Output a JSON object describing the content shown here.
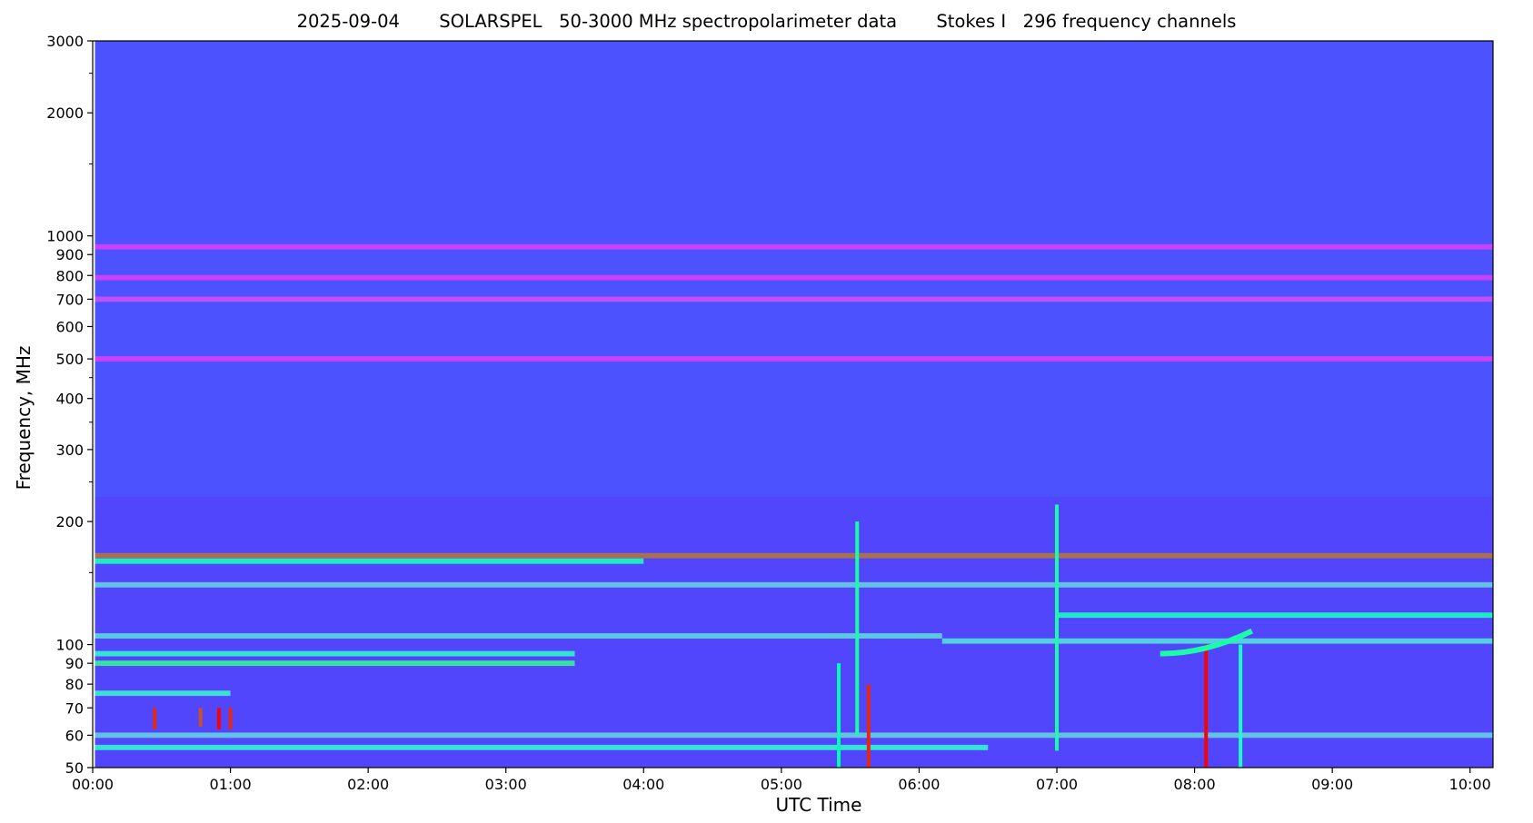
{
  "chart_data": {
    "type": "heatmap",
    "title": "2025-09-04       SOLARSPEL   50-3000 MHz spectropolarimeter data       Stokes I   296 frequency channels",
    "xlabel": "UTC Time",
    "ylabel": "Frequency, MHz",
    "x_range": [
      "00:00",
      "10:10"
    ],
    "x_ticks": [
      "00:00",
      "01:00",
      "02:00",
      "03:00",
      "04:00",
      "05:00",
      "06:00",
      "07:00",
      "08:00",
      "09:00",
      "10:00"
    ],
    "y_scale": "log",
    "ylim": [
      50,
      3000
    ],
    "y_ticks": [
      50,
      60,
      70,
      80,
      90,
      100,
      200,
      300,
      400,
      500,
      600,
      700,
      800,
      900,
      1000,
      2000,
      3000
    ],
    "y_minor_ticks": [
      150,
      250,
      350,
      450,
      1500,
      2500
    ],
    "colormap": "rainbow",
    "colors": {
      "background_level": "#4b52fe",
      "strong_level": "#ff0000"
    },
    "data_start": "00:01",
    "grid": false,
    "features": [
      {
        "type": "band",
        "freq_mhz": 940,
        "start": "00:01",
        "end": "10:10",
        "level": 0.08
      },
      {
        "type": "band",
        "freq_mhz": 790,
        "start": "00:01",
        "end": "10:10",
        "level": 0.08
      },
      {
        "type": "band",
        "freq_mhz": 700,
        "start": "00:01",
        "end": "10:10",
        "level": 0.1
      },
      {
        "type": "band",
        "freq_mhz": 500,
        "start": "00:01",
        "end": "10:10",
        "level": 0.08
      },
      {
        "type": "band",
        "freq_mhz": 165,
        "start": "00:01",
        "end": "10:10",
        "level": 0.85
      },
      {
        "type": "band",
        "freq_mhz": 160,
        "start": "00:01",
        "end": "04:00",
        "level": 0.45
      },
      {
        "type": "band",
        "freq_mhz": 105,
        "start": "00:01",
        "end": "06:10",
        "level": 0.32
      },
      {
        "type": "band",
        "freq_mhz": 102,
        "start": "06:10",
        "end": "10:10",
        "level": 0.34
      },
      {
        "type": "band",
        "freq_mhz": 118,
        "start": "07:00",
        "end": "10:10",
        "level": 0.45
      },
      {
        "type": "band",
        "freq_mhz": 90,
        "start": "00:01",
        "end": "03:30",
        "level": 0.6
      },
      {
        "type": "band",
        "freq_mhz": 95,
        "start": "00:01",
        "end": "03:30",
        "level": 0.4
      },
      {
        "type": "band",
        "freq_mhz": 76,
        "start": "00:01",
        "end": "01:00",
        "level": 0.38
      },
      {
        "type": "band",
        "freq_mhz": 56,
        "start": "00:01",
        "end": "06:30",
        "level": 0.4
      },
      {
        "type": "band",
        "freq_mhz": 60,
        "start": "00:01",
        "end": "10:10",
        "level": 0.3
      },
      {
        "type": "band",
        "freq_mhz": 140,
        "start": "00:01",
        "end": "10:10",
        "level": 0.3
      },
      {
        "type": "burst",
        "time": "00:27",
        "freq_low": 62,
        "freq_high": 70,
        "level": 0.95
      },
      {
        "type": "burst",
        "time": "00:47",
        "freq_low": 63,
        "freq_high": 70,
        "level": 0.9
      },
      {
        "type": "burst",
        "time": "00:55",
        "freq_low": 62,
        "freq_high": 70,
        "level": 1.0
      },
      {
        "type": "burst",
        "time": "01:00",
        "freq_low": 62,
        "freq_high": 70,
        "level": 0.95
      },
      {
        "type": "burst",
        "time": "05:25",
        "freq_low": 50,
        "freq_high": 90,
        "level": 0.5
      },
      {
        "type": "burst",
        "time": "05:33",
        "freq_low": 60,
        "freq_high": 200,
        "level": 0.55
      },
      {
        "type": "burst",
        "time": "05:38",
        "freq_low": 50,
        "freq_high": 80,
        "level": 0.95
      },
      {
        "type": "burst",
        "time": "07:00",
        "freq_low": 55,
        "freq_high": 220,
        "level": 0.55
      },
      {
        "type": "burst",
        "time": "08:05",
        "freq_low": 50,
        "freq_high": 100,
        "level": 1.0
      },
      {
        "type": "burst",
        "time": "08:20",
        "freq_low": 50,
        "freq_high": 100,
        "level": 0.45
      },
      {
        "type": "drift",
        "start": "07:45",
        "end": "08:25",
        "freq_start": 95,
        "freq_end": 108,
        "level": 0.55
      }
    ]
  }
}
